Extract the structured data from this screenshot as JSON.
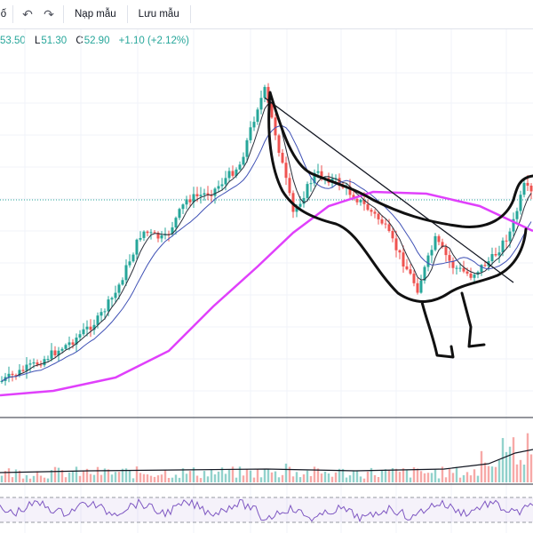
{
  "toolbar": {
    "truncated_left": "ố",
    "undo_icon": "undo-icon",
    "redo_icon": "redo-icon",
    "load_template": "Nạp mẫu",
    "save_template": "Lưu mẫu"
  },
  "legend": {
    "high": "53.50",
    "low_prefix": "L",
    "low": "51.30",
    "close_prefix": "C",
    "close": "52.90",
    "change": "+1.10 (+2.12%)"
  },
  "colors": {
    "up": "#26a69a",
    "down": "#ef5350",
    "ma_fast": "#2a2e39",
    "ma_mid": "#3f51b5",
    "ma_slow": "#e040fb",
    "rsi": "#7e57c2",
    "price_line": "#26a69a"
  },
  "chart_data": {
    "type": "candlestick",
    "title": "",
    "xlabel": "",
    "ylabel": "",
    "last_close": 52.9,
    "overlays": [
      "moving-average-fast",
      "moving-average-mid",
      "moving-average-slow",
      "trend-line",
      "hand-drawn-dinosaur-sketch"
    ],
    "panes": [
      "price",
      "volume",
      "rsi"
    ]
  }
}
